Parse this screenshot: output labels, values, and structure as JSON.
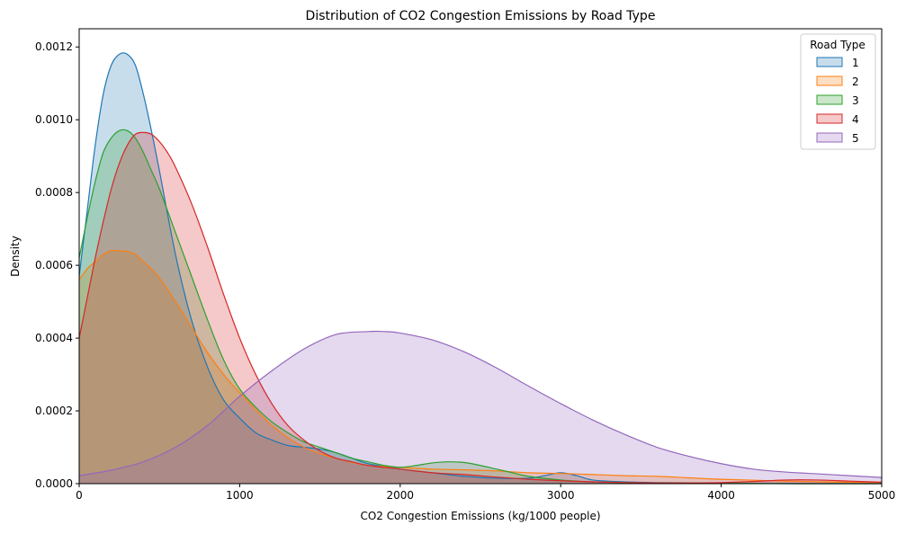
{
  "chart_data": {
    "type": "area",
    "title": "Distribution of CO2 Congestion Emissions by Road Type",
    "xlabel": "CO2 Congestion Emissions (kg/1000 people)",
    "ylabel": "Density",
    "xlim": [
      0,
      5000
    ],
    "ylim": [
      0,
      0.00125
    ],
    "xticks": [
      0,
      1000,
      2000,
      3000,
      4000,
      5000
    ],
    "xtick_labels": [
      "0",
      "1000",
      "2000",
      "3000",
      "4000",
      "5000"
    ],
    "yticks": [
      0,
      0.0002,
      0.0004,
      0.0006,
      0.0008,
      0.001,
      0.0012
    ],
    "ytick_labels": [
      "0.0000",
      "0.0002",
      "0.0004",
      "0.0006",
      "0.0008",
      "0.0010",
      "0.0012"
    ],
    "grid": false,
    "legend": {
      "title": "Road Type",
      "placement": "top-right"
    },
    "series": [
      {
        "name": "1",
        "color": "#1f77b4",
        "x": [
          0,
          50,
          100,
          150,
          200,
          250,
          300,
          350,
          400,
          450,
          500,
          600,
          700,
          800,
          900,
          1000,
          1100,
          1200,
          1300,
          1400,
          1500,
          1600,
          1700,
          1800,
          2000,
          2200,
          2400,
          2600,
          2800,
          2900,
          3000,
          3100,
          3200,
          3400,
          3600,
          3800,
          4000,
          4500,
          5000
        ],
        "values": [
          0.00057,
          0.00075,
          0.00093,
          0.00107,
          0.00115,
          0.00118,
          0.00118,
          0.00115,
          0.00107,
          0.00097,
          0.00086,
          0.00063,
          0.00045,
          0.00032,
          0.00023,
          0.00018,
          0.00014,
          0.00012,
          0.000105,
          0.0001,
          9.5e-05,
          8.5e-05,
          7e-05,
          5.5e-05,
          4e-05,
          3e-05,
          2e-05,
          1.5e-05,
          1.5e-05,
          2.2e-05,
          3e-05,
          2.2e-05,
          1e-05,
          5e-06,
          3e-06,
          2e-06,
          1e-06,
          0.0,
          0.0
        ]
      },
      {
        "name": "2",
        "color": "#ff7f0e",
        "x": [
          0,
          50,
          100,
          150,
          200,
          250,
          300,
          350,
          400,
          450,
          500,
          600,
          700,
          800,
          900,
          1000,
          1200,
          1400,
          1600,
          1800,
          2000,
          2200,
          2400,
          2600,
          2800,
          3000,
          3200,
          3400,
          3600,
          3800,
          4000,
          4500,
          5000
        ],
        "values": [
          0.00056,
          0.00059,
          0.00061,
          0.00063,
          0.00064,
          0.00064,
          0.000638,
          0.00063,
          0.00061,
          0.00059,
          0.000565,
          0.0005,
          0.00043,
          0.00036,
          0.0003,
          0.00025,
          0.00016,
          0.0001,
          7e-05,
          5e-05,
          4.5e-05,
          4e-05,
          3.8e-05,
          3.5e-05,
          3e-05,
          2.8e-05,
          2.5e-05,
          2.2e-05,
          2e-05,
          1.6e-05,
          1.2e-05,
          6e-06,
          3e-06
        ]
      },
      {
        "name": "3",
        "color": "#2ca02c",
        "x": [
          0,
          50,
          100,
          150,
          200,
          250,
          300,
          350,
          400,
          450,
          500,
          600,
          700,
          800,
          900,
          1000,
          1100,
          1200,
          1300,
          1400,
          1500,
          1600,
          1700,
          1800,
          1900,
          2000,
          2100,
          2200,
          2300,
          2400,
          2500,
          2600,
          2700,
          2800,
          3000,
          3200,
          3400,
          3600,
          4000,
          4500,
          5000
        ],
        "values": [
          0.00062,
          0.00073,
          0.00083,
          0.00091,
          0.00095,
          0.00097,
          0.00097,
          0.00095,
          0.00091,
          0.00086,
          0.00081,
          0.00069,
          0.00057,
          0.00045,
          0.00034,
          0.00026,
          0.00021,
          0.00017,
          0.00014,
          0.000115,
          0.0001,
          8.5e-05,
          7e-05,
          6e-05,
          5e-05,
          4.5e-05,
          5e-05,
          5.7e-05,
          6e-05,
          5.8e-05,
          5e-05,
          4e-05,
          3e-05,
          2e-05,
          1e-05,
          5e-06,
          3e-06,
          2e-06,
          1e-06,
          0.0,
          0.0
        ]
      },
      {
        "name": "4",
        "color": "#d62728",
        "x": [
          0,
          50,
          100,
          150,
          200,
          250,
          300,
          350,
          400,
          450,
          500,
          550,
          600,
          700,
          800,
          900,
          1000,
          1100,
          1200,
          1300,
          1400,
          1500,
          1600,
          1700,
          1800,
          2000,
          2200,
          2400,
          2600,
          2800,
          3000,
          3200,
          3400,
          3600,
          3800,
          4000,
          4200,
          4400,
          4600,
          4800,
          5000
        ],
        "values": [
          0.0004,
          0.00051,
          0.00062,
          0.00072,
          0.00081,
          0.00088,
          0.00093,
          0.00096,
          0.000965,
          0.00096,
          0.00094,
          0.00091,
          0.00087,
          0.00077,
          0.00065,
          0.00052,
          0.0004,
          0.0003,
          0.00022,
          0.00016,
          0.00012,
          9e-05,
          7e-05,
          6e-05,
          5e-05,
          4e-05,
          3e-05,
          2.5e-05,
          1.8e-05,
          1.2e-05,
          8e-06,
          5e-06,
          3e-06,
          2e-06,
          2e-06,
          3e-06,
          6e-06,
          1e-05,
          1e-05,
          7e-06,
          4e-06
        ]
      },
      {
        "name": "5",
        "color": "#9467bd",
        "x": [
          0,
          200,
          400,
          600,
          800,
          1000,
          1200,
          1400,
          1600,
          1800,
          1900,
          2000,
          2200,
          2400,
          2600,
          2800,
          3000,
          3200,
          3400,
          3600,
          3800,
          4000,
          4200,
          4400,
          4600,
          4800,
          5000
        ],
        "values": [
          2.2e-05,
          3.7e-05,
          6e-05,
          0.0001,
          0.00016,
          0.00024,
          0.00031,
          0.00037,
          0.00041,
          0.000418,
          0.000418,
          0.000414,
          0.000395,
          0.000362,
          0.000318,
          0.000268,
          0.00022,
          0.000175,
          0.000135,
          0.0001,
          7.5e-05,
          5.5e-05,
          4e-05,
          3.2e-05,
          2.7e-05,
          2.2e-05,
          1.7e-05
        ]
      }
    ]
  }
}
